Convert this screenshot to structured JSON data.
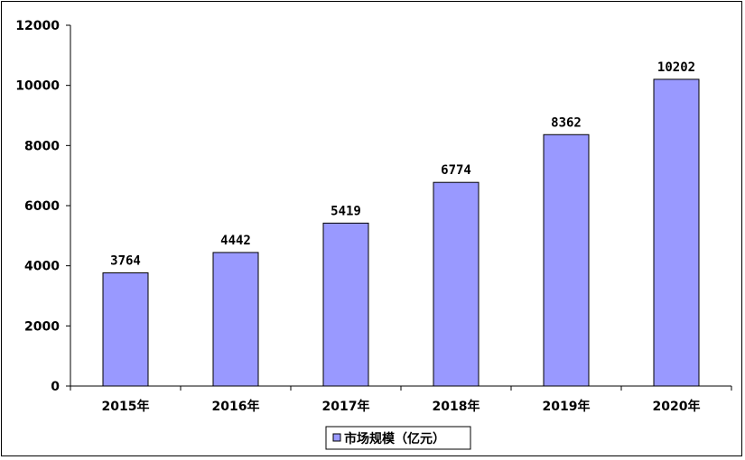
{
  "chart_data": {
    "type": "bar",
    "categories": [
      "2015年",
      "2016年",
      "2017年",
      "2018年",
      "2019年",
      "2020年"
    ],
    "series": [
      {
        "name": "市场规模（亿元）",
        "values": [
          3764,
          4442,
          5419,
          6774,
          8362,
          10202
        ]
      }
    ],
    "ylim": [
      0,
      12000
    ],
    "yticks": [
      0,
      2000,
      4000,
      6000,
      8000,
      10000,
      12000
    ],
    "data_labels": [
      "3764",
      "4442",
      "5419",
      "6774",
      "8362",
      "10202"
    ],
    "grid": false,
    "legend_position": "bottom",
    "colors": {
      "bar_fill": "#9999ff",
      "bar_stroke": "#000000",
      "axis": "#000000"
    }
  }
}
